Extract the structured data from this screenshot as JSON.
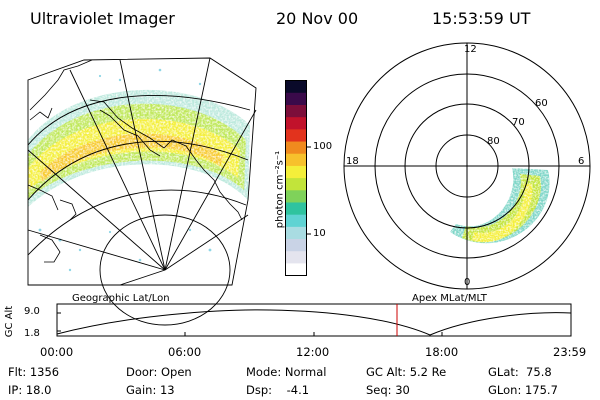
{
  "header": {
    "instrument": "Ultraviolet Imager",
    "date": "20 Nov 00",
    "time": "15:53:59 UT"
  },
  "colorbar": {
    "unit_label": "photon cm⁻²s⁻¹",
    "tick_100": "100",
    "tick_10": "10",
    "colors": [
      "#ffffff",
      "#e4e4ee",
      "#c9d3e6",
      "#a9dce2",
      "#5fd3d3",
      "#2fc39f",
      "#7fd25a",
      "#c2e43a",
      "#f4ef3a",
      "#f7c12c",
      "#f08a1e",
      "#e2331d",
      "#c1122b",
      "#7c0e3a",
      "#3a0a4a",
      "#0a0a2a"
    ]
  },
  "polar": {
    "lat_labels": [
      "80",
      "70",
      "60"
    ],
    "mlt_top": "12",
    "mlt_left": "18",
    "mlt_right": "6",
    "mlt_bottom": "0"
  },
  "orbit": {
    "y_axis_label": "GC Alt",
    "y_max": "9.0",
    "y_min": "1.8",
    "left_title": "Geographic Lat/Lon",
    "right_title": "Apex MLat/MLT",
    "time_ticks": [
      "00:00",
      "06:00",
      "12:00",
      "18:00",
      "23:59"
    ],
    "current_time_marker": "15:53:59",
    "marker_color": "#cc0000"
  },
  "info": {
    "flt": "Flt: 1356",
    "ip": "IP: 18.0",
    "door": "Door: Open",
    "gain": "Gain: 13",
    "mode": "Mode: Normal",
    "dsp": "Dsp:    -4.1",
    "gc_alt": "GC Alt: 5.2 Re",
    "seq": "Seq: 30",
    "glat": "GLat:  75.8",
    "glon": "GLon: 175.7"
  }
}
